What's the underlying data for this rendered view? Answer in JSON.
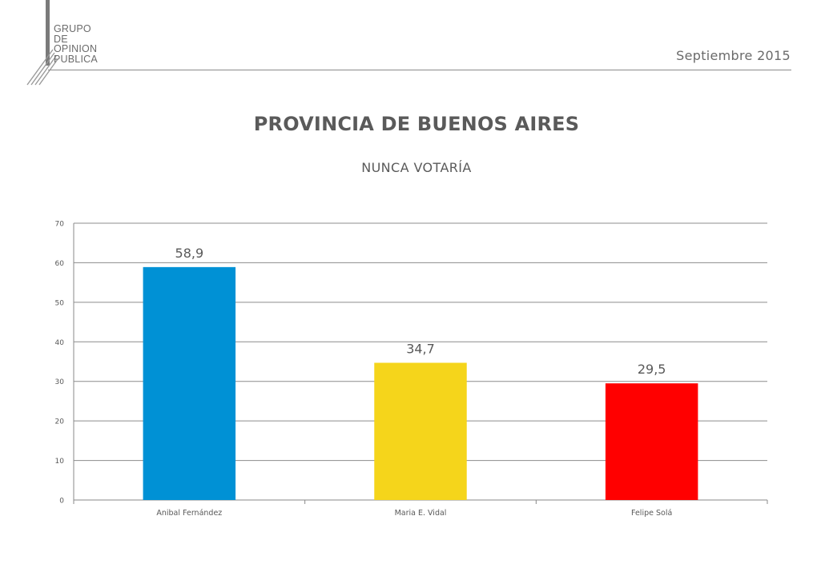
{
  "logo": {
    "lines": [
      "GRUPO",
      "DE",
      "OPINION",
      "PUBLICA"
    ]
  },
  "header": {
    "date": "Septiembre 2015"
  },
  "chart_data": {
    "type": "bar",
    "title": "PROVINCIA DE BUENOS AIRES",
    "subtitle": "NUNCA VOTARÍA",
    "categories": [
      "Anibal Fernández",
      "Maria E. Vidal",
      "Felipe Solá"
    ],
    "values": [
      58.9,
      34.7,
      29.5
    ],
    "value_labels": [
      "58,9",
      "34,7",
      "29,5"
    ],
    "colors": [
      "#0091D5",
      "#F5D51B",
      "#FF0000"
    ],
    "ylim": [
      0,
      70
    ],
    "yticks": [
      "0",
      "10",
      "20",
      "30",
      "40",
      "50",
      "60",
      "70"
    ],
    "grid": true,
    "legend": "none"
  }
}
